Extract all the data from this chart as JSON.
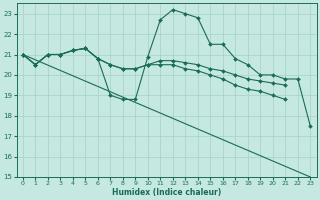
{
  "title": "",
  "xlabel": "Humidex (Indice chaleur)",
  "ylabel": "",
  "background_color": "#c5e8e0",
  "grid_color": "#a8d0c8",
  "line_color": "#1a6b5a",
  "xlim": [
    -0.5,
    23.5
  ],
  "ylim": [
    15,
    23.5
  ],
  "yticks": [
    15,
    16,
    17,
    18,
    19,
    20,
    21,
    22,
    23
  ],
  "xticks": [
    0,
    1,
    2,
    3,
    4,
    5,
    6,
    7,
    8,
    9,
    10,
    11,
    12,
    13,
    14,
    15,
    16,
    17,
    18,
    19,
    20,
    21,
    22,
    23
  ],
  "series": [
    {
      "x": [
        0,
        1,
        2,
        3,
        4,
        5,
        6,
        7,
        8,
        9,
        10,
        11,
        12,
        13,
        14,
        15,
        16,
        17,
        18,
        19,
        20,
        21,
        22,
        23
      ],
      "y": [
        21.0,
        20.5,
        21.0,
        21.0,
        21.2,
        21.3,
        20.8,
        19.0,
        18.8,
        18.8,
        20.9,
        22.7,
        23.2,
        23.0,
        22.8,
        21.5,
        21.5,
        20.8,
        20.5,
        20.0,
        20.0,
        19.8,
        19.8,
        17.5
      ],
      "marker": true
    },
    {
      "x": [
        0,
        1,
        2,
        3,
        4,
        5,
        6,
        7,
        8,
        9,
        10,
        11,
        12,
        13,
        14,
        15,
        16,
        17,
        18,
        19,
        20,
        21
      ],
      "y": [
        21.0,
        20.5,
        21.0,
        21.0,
        21.2,
        21.3,
        20.8,
        20.5,
        20.3,
        20.3,
        20.5,
        20.5,
        20.5,
        20.3,
        20.2,
        20.0,
        19.8,
        19.5,
        19.3,
        19.2,
        19.0,
        18.8
      ],
      "marker": true
    },
    {
      "x": [
        0,
        1,
        2,
        3,
        4,
        5,
        6,
        7,
        8,
        9,
        10,
        11,
        12,
        13,
        14,
        15,
        16,
        17,
        18,
        19,
        20,
        21
      ],
      "y": [
        21.0,
        20.5,
        21.0,
        21.0,
        21.2,
        21.3,
        20.8,
        20.5,
        20.3,
        20.3,
        20.5,
        20.7,
        20.7,
        20.6,
        20.5,
        20.3,
        20.2,
        20.0,
        19.8,
        19.7,
        19.6,
        19.5
      ],
      "marker": true
    },
    {
      "x": [
        0,
        23
      ],
      "y": [
        21.0,
        15.0
      ],
      "marker": false
    }
  ]
}
